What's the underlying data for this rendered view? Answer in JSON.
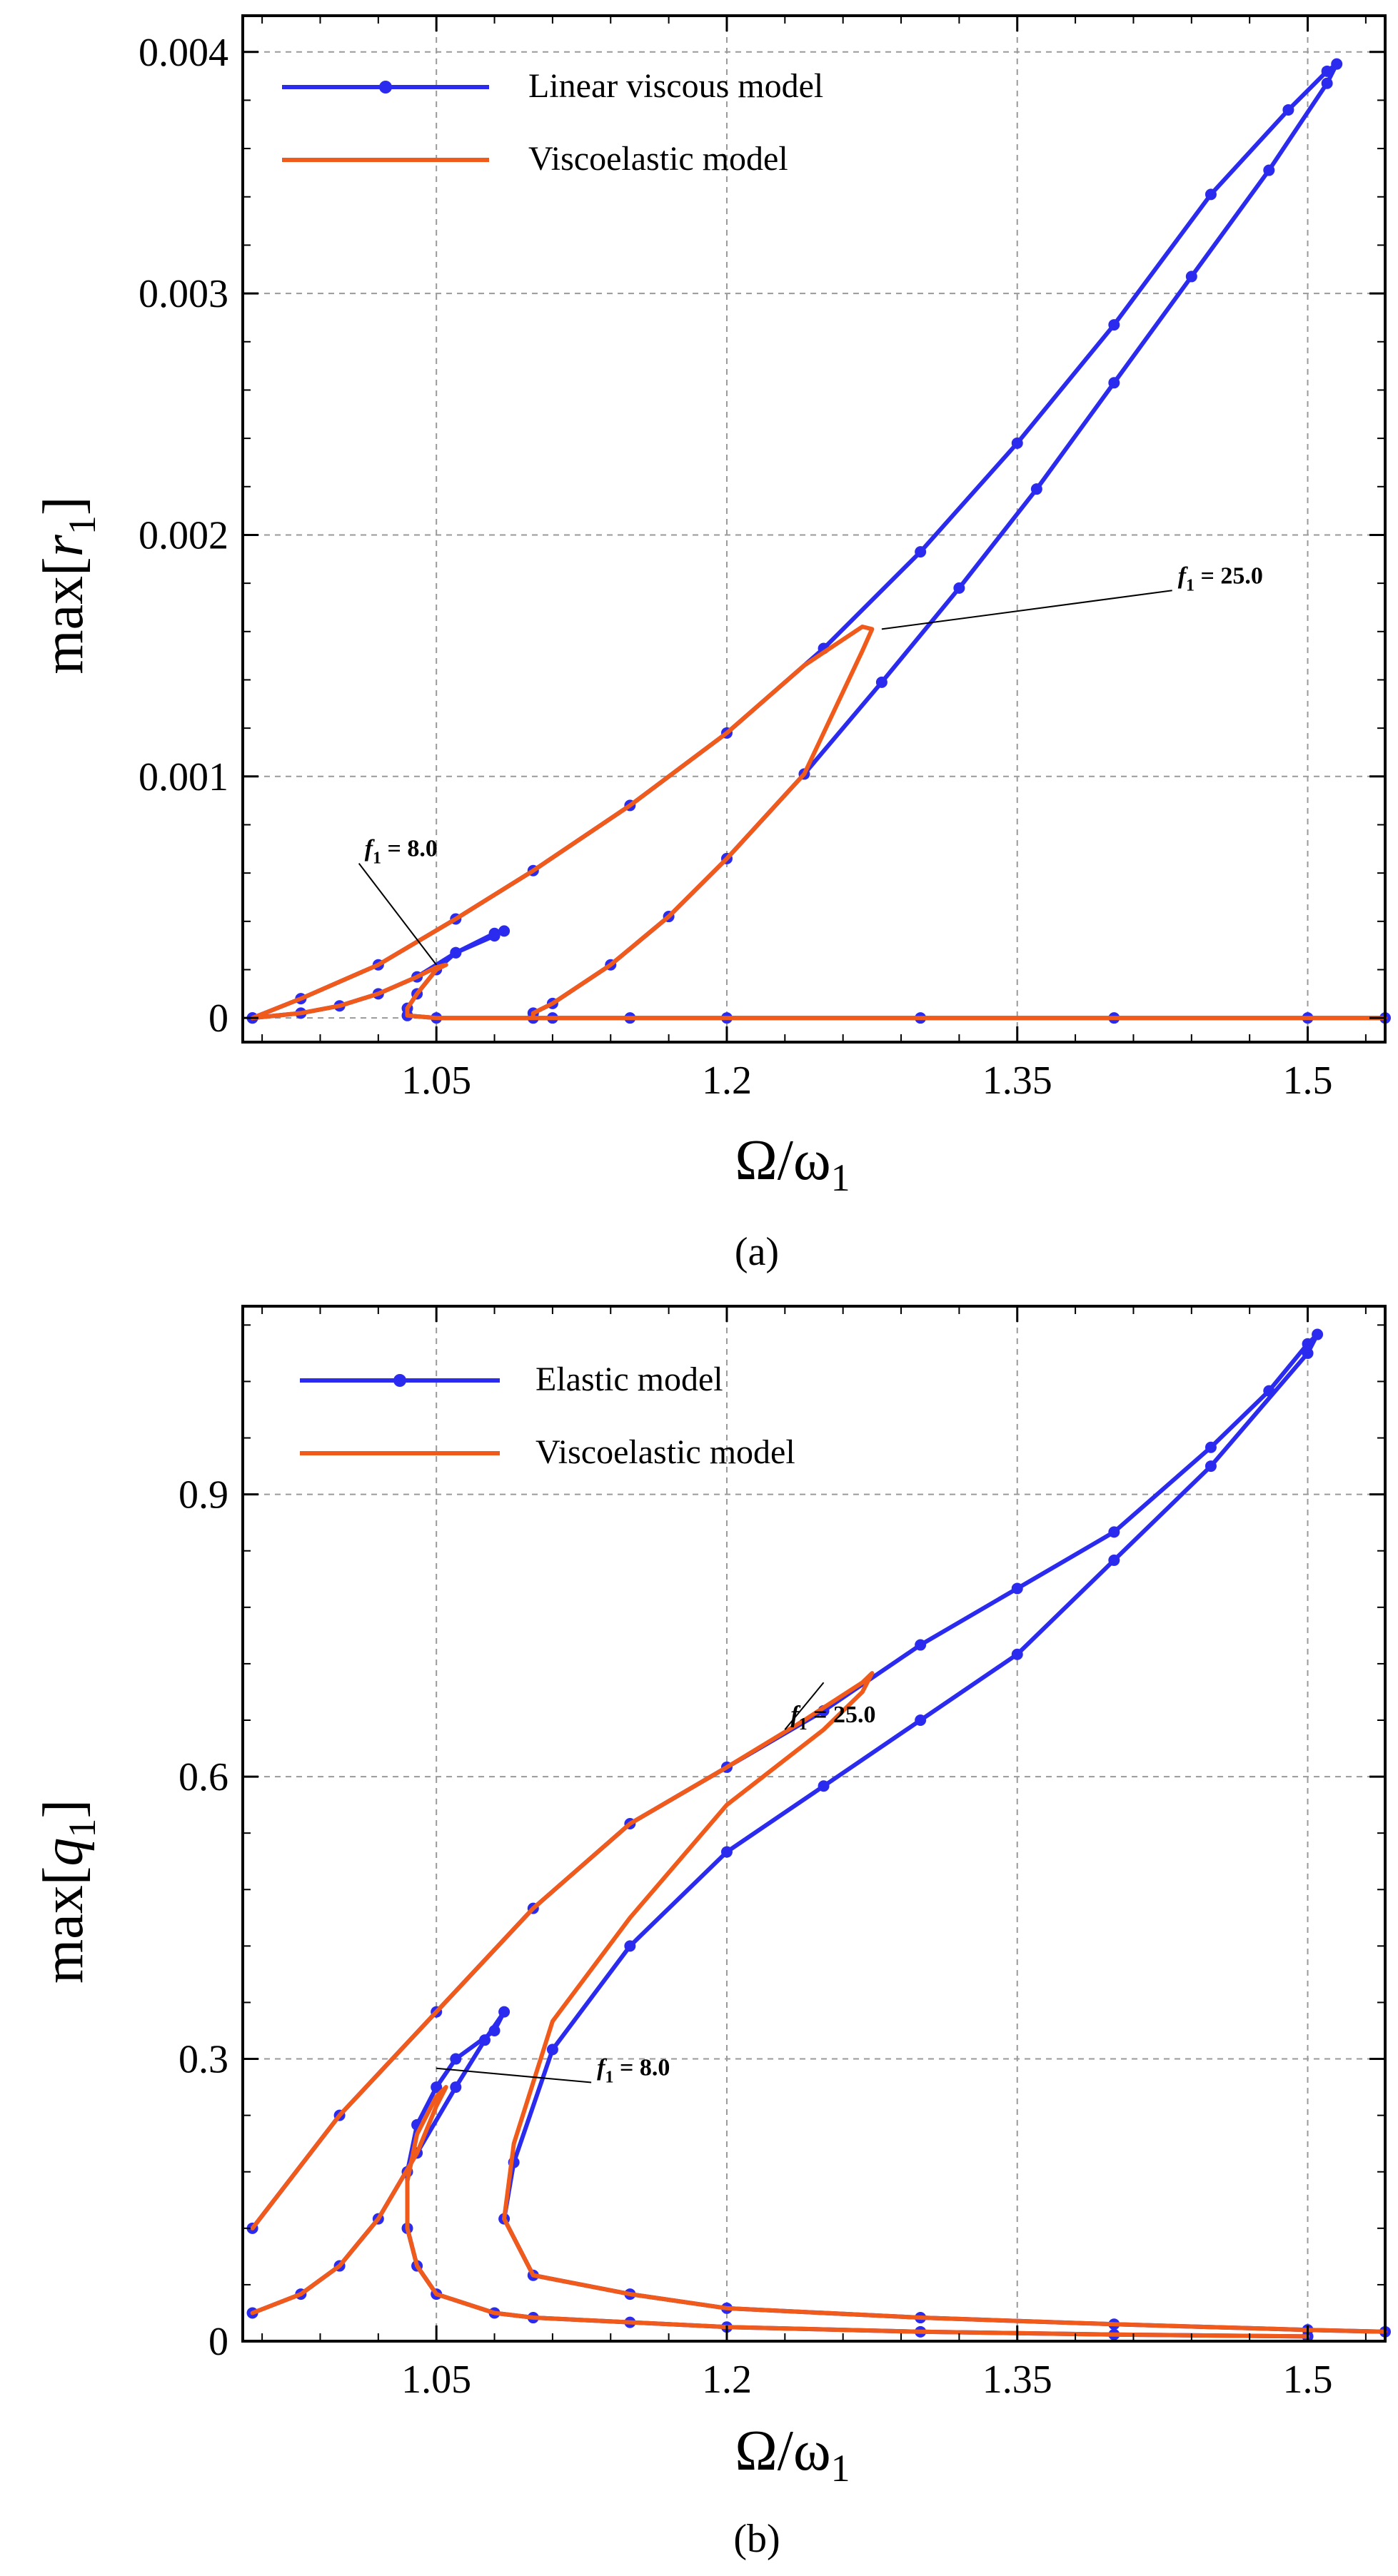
{
  "chart_data": [
    {
      "panel_label": "(a)",
      "type": "line",
      "ylabel": {
        "prefix": "max[",
        "var": "r",
        "sub": "1",
        "suffix": "]"
      },
      "xlabel": {
        "main": "Ω/ω",
        "sub": "1"
      },
      "xlim": [
        0.95,
        1.54
      ],
      "ylim": [
        -0.0001,
        0.00415
      ],
      "xticks": [
        1.05,
        1.2,
        1.35,
        1.5
      ],
      "xtick_labels": [
        "1.05",
        "1.2",
        "1.35",
        "1.5"
      ],
      "yticks": [
        0,
        0.001,
        0.002,
        0.003,
        0.004
      ],
      "ytick_labels": [
        "0",
        "0.001",
        "0.002",
        "0.003",
        "0.004"
      ],
      "grid": true,
      "legend_position": "top-left",
      "legend": [
        {
          "label": "Linear viscous model",
          "color": "#2b2bf0",
          "marker": "circle"
        },
        {
          "label": "Viscoelastic model",
          "color": "#f05a1a",
          "marker": "none"
        }
      ],
      "series": [
        {
          "name": "Linear viscous model",
          "forcing": "f1 = 25.0",
          "color": "#2b2bf0",
          "markers": true,
          "x": [
            0.955,
            0.98,
            1.02,
            1.06,
            1.1,
            1.15,
            1.2,
            1.25,
            1.3,
            1.35,
            1.4,
            1.45,
            1.49,
            1.51,
            1.515,
            1.51,
            1.48,
            1.44,
            1.4,
            1.36,
            1.32,
            1.28,
            1.24,
            1.2,
            1.17,
            1.14,
            1.11,
            1.1,
            1.1,
            1.11,
            1.15,
            1.2,
            1.3,
            1.4,
            1.5,
            1.54
          ],
          "y": [
            0.0,
            8e-05,
            0.00022,
            0.00041,
            0.00061,
            0.00088,
            0.00118,
            0.00153,
            0.00193,
            0.00238,
            0.00287,
            0.00341,
            0.00376,
            0.00392,
            0.00395,
            0.00387,
            0.00351,
            0.00307,
            0.00263,
            0.00219,
            0.00178,
            0.00139,
            0.00101,
            0.00066,
            0.00042,
            0.00022,
            6e-05,
            2e-05,
            0.0,
            0.0,
            0.0,
            0.0,
            0.0,
            0.0,
            0.0,
            0.0
          ]
        },
        {
          "name": "Viscoelastic model",
          "forcing": "f1 = 25.0",
          "color": "#f05a1a",
          "markers": false,
          "x": [
            0.955,
            0.98,
            1.02,
            1.06,
            1.1,
            1.15,
            1.2,
            1.24,
            1.27,
            1.275,
            1.27,
            1.24,
            1.2,
            1.17,
            1.14,
            1.11,
            1.1,
            1.1,
            1.11,
            1.15,
            1.2,
            1.3,
            1.4,
            1.5,
            1.54
          ],
          "y": [
            0.0,
            8e-05,
            0.00022,
            0.00041,
            0.00061,
            0.00088,
            0.00118,
            0.00146,
            0.00162,
            0.00161,
            0.00152,
            0.00101,
            0.00066,
            0.00042,
            0.00022,
            6e-05,
            2e-05,
            0.0,
            0.0,
            0.0,
            0.0,
            0.0,
            0.0,
            0.0,
            0.0
          ]
        },
        {
          "name": "Linear viscous model",
          "forcing": "f1 = 8.0",
          "color": "#2b2bf0",
          "markers": true,
          "x": [
            0.955,
            0.98,
            1.0,
            1.02,
            1.04,
            1.06,
            1.08,
            1.085,
            1.08,
            1.06,
            1.05,
            1.04,
            1.035,
            1.035,
            1.05,
            1.1
          ],
          "y": [
            0.0,
            2e-05,
            5e-05,
            0.0001,
            0.00017,
            0.00027,
            0.00034,
            0.00036,
            0.00035,
            0.00027,
            0.0002,
            0.0001,
            4e-05,
            1e-05,
            0.0,
            0.0
          ]
        },
        {
          "name": "Viscoelastic model",
          "forcing": "f1 = 8.0",
          "color": "#f05a1a",
          "markers": false,
          "x": [
            0.955,
            0.98,
            1.0,
            1.02,
            1.04,
            1.05,
            1.055,
            1.05,
            1.04,
            1.035,
            1.035,
            1.05,
            1.1
          ],
          "y": [
            0.0,
            2e-05,
            5e-05,
            0.0001,
            0.00017,
            0.00021,
            0.00022,
            0.0002,
            0.0001,
            4e-05,
            1e-05,
            0.0,
            0.0
          ]
        }
      ],
      "annotations": [
        {
          "text_var": "f",
          "text_sub": "1",
          "text_rest": " = 8.0",
          "x": 1.01,
          "y": 0.00064,
          "target_x": 1.05,
          "target_y": 0.00022
        },
        {
          "text_var": "f",
          "text_sub": "1",
          "text_rest": " = 25.0",
          "x": 1.43,
          "y": 0.00177,
          "target_x": 1.28,
          "target_y": 0.00161
        }
      ]
    },
    {
      "panel_label": "(b)",
      "type": "line",
      "ylabel": {
        "prefix": "max[",
        "var": "q",
        "sub": "1",
        "suffix": "]"
      },
      "xlabel": {
        "main": "Ω/ω",
        "sub": "1"
      },
      "xlim": [
        0.95,
        1.54
      ],
      "ylim": [
        0,
        1.1
      ],
      "xticks": [
        1.05,
        1.2,
        1.35,
        1.5
      ],
      "xtick_labels": [
        "1.05",
        "1.2",
        "1.35",
        "1.5"
      ],
      "yticks": [
        0,
        0.3,
        0.6,
        0.9
      ],
      "ytick_labels": [
        "0",
        "0.3",
        "0.6",
        "0.9"
      ],
      "grid": true,
      "legend_position": "top-left",
      "legend": [
        {
          "label": "Elastic model",
          "color": "#2b2bf0",
          "marker": "circle"
        },
        {
          "label": "Viscoelastic model",
          "color": "#f05a1a",
          "marker": "none"
        }
      ],
      "series": [
        {
          "name": "Elastic model",
          "forcing": "f1 = 25.0",
          "color": "#2b2bf0",
          "markers": true,
          "x": [
            0.955,
            1.0,
            1.05,
            1.1,
            1.15,
            1.2,
            1.25,
            1.3,
            1.35,
            1.4,
            1.45,
            1.48,
            1.5,
            1.505,
            1.5,
            1.45,
            1.4,
            1.35,
            1.3,
            1.25,
            1.2,
            1.15,
            1.11,
            1.09,
            1.085,
            1.1,
            1.15,
            1.2,
            1.3,
            1.4,
            1.5,
            1.54
          ],
          "y": [
            0.12,
            0.24,
            0.35,
            0.46,
            0.55,
            0.61,
            0.67,
            0.74,
            0.8,
            0.86,
            0.95,
            1.01,
            1.06,
            1.07,
            1.05,
            0.93,
            0.83,
            0.73,
            0.66,
            0.59,
            0.52,
            0.42,
            0.31,
            0.19,
            0.13,
            0.07,
            0.05,
            0.035,
            0.025,
            0.018,
            0.012,
            0.01
          ]
        },
        {
          "name": "Viscoelastic model",
          "forcing": "f1 = 25.0",
          "color": "#f05a1a",
          "markers": false,
          "x": [
            0.955,
            1.0,
            1.05,
            1.1,
            1.15,
            1.2,
            1.24,
            1.27,
            1.275,
            1.27,
            1.25,
            1.2,
            1.15,
            1.11,
            1.09,
            1.085,
            1.1,
            1.15,
            1.2,
            1.3,
            1.4,
            1.5,
            1.54
          ],
          "y": [
            0.12,
            0.24,
            0.35,
            0.46,
            0.55,
            0.61,
            0.66,
            0.7,
            0.71,
            0.69,
            0.65,
            0.57,
            0.45,
            0.34,
            0.21,
            0.13,
            0.07,
            0.05,
            0.035,
            0.025,
            0.018,
            0.012,
            0.01
          ]
        },
        {
          "name": "Elastic model",
          "forcing": "f1 = 8.0",
          "color": "#2b2bf0",
          "markers": true,
          "x": [
            0.955,
            0.98,
            1.0,
            1.02,
            1.04,
            1.06,
            1.075,
            1.085,
            1.08,
            1.06,
            1.05,
            1.04,
            1.035,
            1.035,
            1.04,
            1.05,
            1.08,
            1.1,
            1.15,
            1.2,
            1.3,
            1.4,
            1.5
          ],
          "y": [
            0.03,
            0.05,
            0.08,
            0.13,
            0.2,
            0.27,
            0.32,
            0.35,
            0.33,
            0.3,
            0.27,
            0.23,
            0.18,
            0.12,
            0.08,
            0.05,
            0.03,
            0.025,
            0.02,
            0.015,
            0.01,
            0.007,
            0.005
          ]
        },
        {
          "name": "Viscoelastic model",
          "forcing": "f1 = 8.0",
          "color": "#f05a1a",
          "markers": false,
          "x": [
            0.955,
            0.98,
            1.0,
            1.02,
            1.04,
            1.05,
            1.055,
            1.05,
            1.04,
            1.035,
            1.035,
            1.04,
            1.05,
            1.08,
            1.1,
            1.15,
            1.2,
            1.3,
            1.4,
            1.5
          ],
          "y": [
            0.03,
            0.05,
            0.08,
            0.13,
            0.2,
            0.25,
            0.27,
            0.26,
            0.22,
            0.17,
            0.12,
            0.08,
            0.05,
            0.03,
            0.025,
            0.02,
            0.015,
            0.01,
            0.007,
            0.005
          ]
        }
      ],
      "annotations": [
        {
          "text_var": "f",
          "text_sub": "1",
          "text_rest": " = 8.0",
          "x": 1.13,
          "y": 0.275,
          "target_x": 1.05,
          "target_y": 0.29
        },
        {
          "text_var": "f",
          "text_sub": "1",
          "text_rest": " = 25.0",
          "x": 1.23,
          "y": 0.65,
          "target_x": 1.25,
          "target_y": 0.7
        }
      ]
    }
  ]
}
